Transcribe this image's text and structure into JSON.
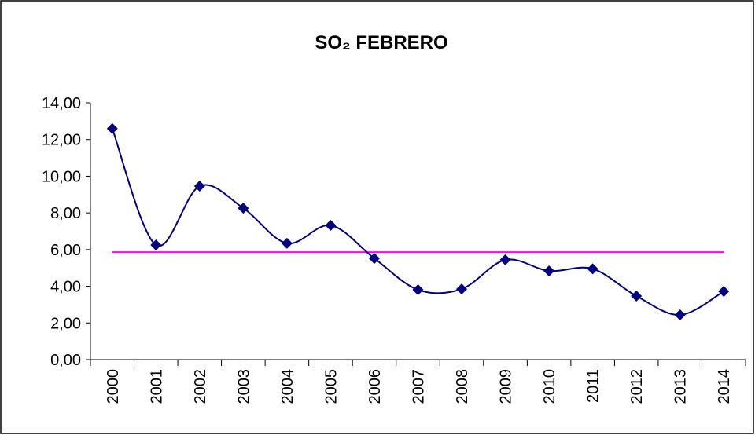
{
  "chart_data": {
    "type": "line",
    "title": "SO₂ FEBRERO",
    "categories": [
      "2000",
      "2001",
      "2002",
      "2003",
      "2004",
      "2005",
      "2006",
      "2007",
      "2008",
      "2009",
      "2010",
      "2011",
      "2012",
      "2013",
      "2014"
    ],
    "series": [
      {
        "color": "#000080",
        "values": [
          12.6,
          6.25,
          9.46,
          8.26,
          6.34,
          7.32,
          5.52,
          3.81,
          3.85,
          5.44,
          4.84,
          4.95,
          3.47,
          2.44,
          3.72
        ]
      }
    ],
    "reference_line": {
      "value": 5.86,
      "color": "#ff00ff"
    },
    "ylim": [
      0,
      14
    ],
    "yticks": [
      {
        "value": 0,
        "label": "0,00"
      },
      {
        "value": 2,
        "label": "2,00"
      },
      {
        "value": 4,
        "label": "4,00"
      },
      {
        "value": 6,
        "label": "6,00"
      },
      {
        "value": 8,
        "label": "8,00"
      },
      {
        "value": 10,
        "label": "10,00"
      },
      {
        "value": 12,
        "label": "12,00"
      },
      {
        "value": 14,
        "label": "14,00"
      }
    ],
    "smooth": true,
    "marker": "diamond"
  }
}
